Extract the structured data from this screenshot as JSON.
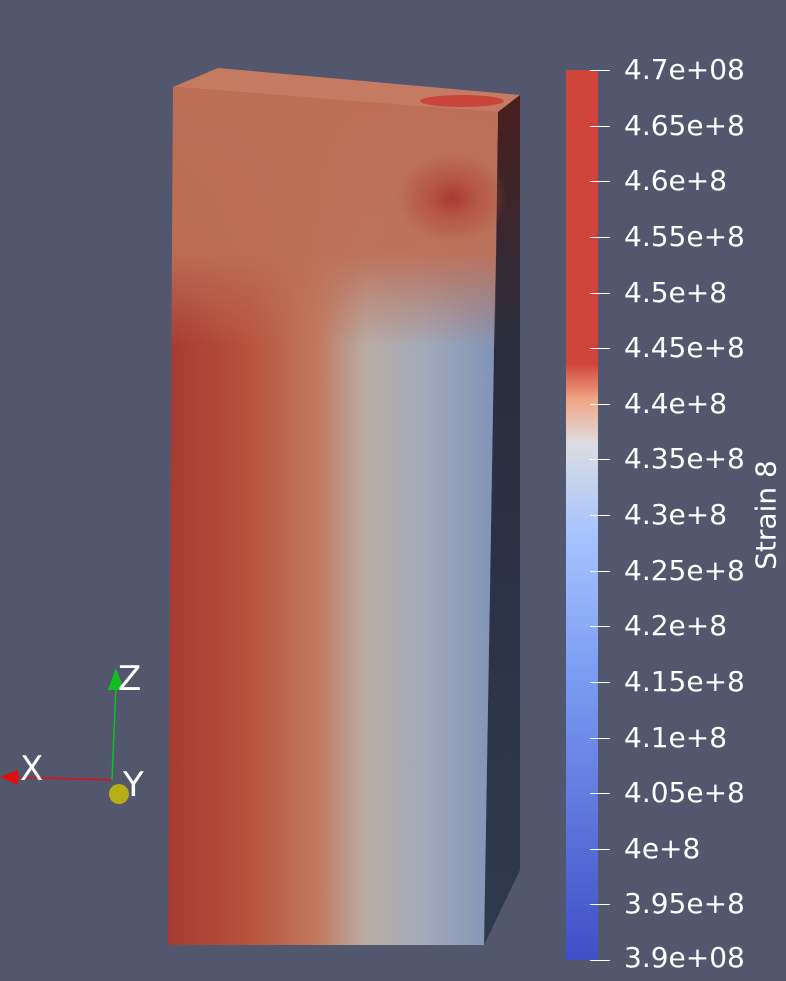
{
  "scalar_bar": {
    "title": "Strain 8",
    "min": 390000000,
    "max": 470000000,
    "ticks": [
      {
        "value": 470000000,
        "label": "4.7e+08"
      },
      {
        "value": 465000000,
        "label": "4.65e+8"
      },
      {
        "value": 460000000,
        "label": "4.6e+8"
      },
      {
        "value": 455000000,
        "label": "4.55e+8"
      },
      {
        "value": 450000000,
        "label": "4.5e+8"
      },
      {
        "value": 445000000,
        "label": "4.45e+8"
      },
      {
        "value": 440000000,
        "label": "4.4e+8"
      },
      {
        "value": 435000000,
        "label": "4.35e+8"
      },
      {
        "value": 430000000,
        "label": "4.3e+8"
      },
      {
        "value": 425000000,
        "label": "4.25e+8"
      },
      {
        "value": 420000000,
        "label": "4.2e+8"
      },
      {
        "value": 415000000,
        "label": "4.15e+8"
      },
      {
        "value": 410000000,
        "label": "4.1e+8"
      },
      {
        "value": 405000000,
        "label": "4.05e+8"
      },
      {
        "value": 400000000,
        "label": "4e+8"
      },
      {
        "value": 395000000,
        "label": "3.95e+8"
      },
      {
        "value": 390000000,
        "label": "3.9e+08"
      }
    ],
    "colors": {
      "high": "#cf453c",
      "mid_high": "#f0a585",
      "mid": "#dcdde1",
      "mid_low": "#a7c4ff",
      "low": "#3f4fc6"
    }
  },
  "orientation_axes": {
    "x_label": "X",
    "y_label": "Y",
    "z_label": "Z",
    "x_color": "#e01010",
    "y_color": "#b5ae17",
    "z_color": "#10c020"
  },
  "background": "#52576e"
}
